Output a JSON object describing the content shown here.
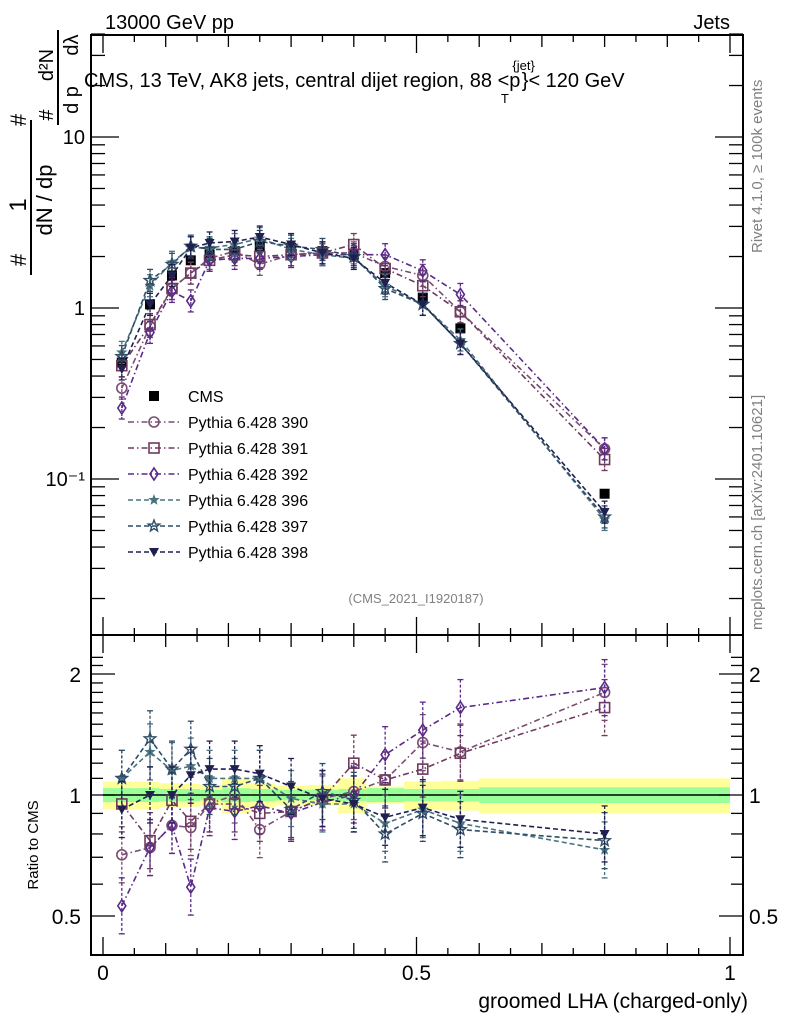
{
  "header": {
    "left": "13000 GeV pp",
    "right": "Jets"
  },
  "side_labels": {
    "rivet": "Rivet 4.1.0, ≥ 100k events",
    "mcplots": "mcplots.cern.ch [arXiv:2401.10621]"
  },
  "chart_data": [
    {
      "type": "line",
      "panel": "main",
      "title": "CMS, 13 TeV, AK8 jets, central dijet region, 88 <p_T^{jet}< 120 GeV",
      "title_parts": {
        "pre": "CMS, 13 TeV, AK8 jets, central dijet region, 88 <p",
        "sup": "{jet}",
        "sub": "T",
        "post": "}< 120 GeV"
      },
      "xlabel": "groomed LHA (charged-only)",
      "ylabel": "1/dN/dp_T  d²N/dp_T dλ",
      "ylabel_parts": {
        "num1": "1",
        "den1": "dN / dp",
        "den1sub": "T",
        "num2": "d²N",
        "den2": "d p",
        "den2sub": "T",
        "den2b": "dλ",
        "hash": "#"
      },
      "yscale": "log",
      "xlim": [
        -0.03,
        1.02
      ],
      "ylim": [
        0.018,
        40
      ],
      "yticks": [
        {
          "v": 10,
          "label": "10"
        },
        {
          "v": 1,
          "label": "1"
        },
        {
          "v": 0.1,
          "label": "10⁻¹"
        }
      ],
      "legend_position": "middle-left",
      "annotation": "(CMS_2021_I1920187)",
      "x": [
        0.03,
        0.075,
        0.11,
        0.14,
        0.17,
        0.21,
        0.25,
        0.3,
        0.35,
        0.4,
        0.45,
        0.51,
        0.57,
        0.8
      ],
      "series": [
        {
          "name": "CMS",
          "marker": "square-filled",
          "color": "#000000",
          "dash": "none",
          "values": [
            0.48,
            1.05,
            1.55,
            1.9,
            2.05,
            2.15,
            2.3,
            2.25,
            2.15,
            2.05,
            1.6,
            1.15,
            0.76,
            0.082
          ]
        },
        {
          "name": "Pythia 6.428 390",
          "marker": "circle-open",
          "color": "#7b4d73",
          "dash": "dashdot",
          "values": [
            0.34,
            0.78,
            1.3,
            1.6,
            1.95,
            2.15,
            1.8,
            2.05,
            2.1,
            2.1,
            1.75,
            1.55,
            0.95,
            0.15
          ]
        },
        {
          "name": "Pythia 6.428 391",
          "marker": "square-open",
          "color": "#6e3b5e",
          "dash": "dashdot",
          "values": [
            0.46,
            0.8,
            1.3,
            1.6,
            1.9,
            2.05,
            2.0,
            2.05,
            2.1,
            2.35,
            1.7,
            1.35,
            0.95,
            0.13
          ]
        },
        {
          "name": "Pythia 6.428 392",
          "marker": "diamond-open",
          "color": "#5a2a8a",
          "dash": "dashdot",
          "values": [
            0.26,
            0.72,
            1.25,
            1.1,
            1.9,
            1.95,
            1.95,
            2.0,
            2.05,
            2.05,
            2.05,
            1.65,
            1.2,
            0.15
          ]
        },
        {
          "name": "Pythia 6.428 396",
          "marker": "star-filled",
          "color": "#4a7380",
          "dash": "dashed",
          "values": [
            0.55,
            1.35,
            1.85,
            2.25,
            2.25,
            2.35,
            2.55,
            2.2,
            2.05,
            1.95,
            1.35,
            1.05,
            0.65,
            0.058
          ]
        },
        {
          "name": "Pythia 6.428 397",
          "marker": "star-open",
          "color": "#2f4d66",
          "dash": "dashed",
          "values": [
            0.52,
            1.45,
            1.8,
            2.3,
            2.2,
            2.2,
            2.45,
            2.3,
            2.2,
            2.0,
            1.3,
            1.05,
            0.62,
            0.06
          ]
        },
        {
          "name": "Pythia 6.428 398",
          "marker": "triangle-down-filled",
          "color": "#1f1f50",
          "dash": "dashed",
          "values": [
            0.44,
            1.05,
            1.55,
            2.25,
            2.4,
            2.45,
            2.6,
            2.35,
            2.1,
            1.95,
            1.4,
            1.05,
            0.62,
            0.064
          ]
        }
      ]
    },
    {
      "type": "line",
      "panel": "ratio",
      "xlabel": "groomed LHA (charged-only)",
      "ylabel": "Ratio to CMS",
      "yscale": "log",
      "xlim": [
        -0.03,
        1.02
      ],
      "ylim": [
        0.43,
        2.3
      ],
      "yticks": [
        {
          "v": 2,
          "label": "2"
        },
        {
          "v": 1,
          "label": "1"
        },
        {
          "v": 0.5,
          "label": "0.5"
        }
      ],
      "xticks": [
        {
          "v": 0,
          "label": "0"
        },
        {
          "v": 0.5,
          "label": "0.5"
        },
        {
          "v": 1,
          "label": "1"
        }
      ],
      "uncertainty_bands": {
        "edges": [
          0.0,
          0.05,
          0.09,
          0.125,
          0.155,
          0.19,
          0.235,
          0.275,
          0.325,
          0.375,
          0.42,
          0.48,
          0.54,
          0.6,
          1.0
        ],
        "inner_halfwidth": [
          0.04,
          0.04,
          0.035,
          0.035,
          0.03,
          0.04,
          0.035,
          0.03,
          0.03,
          0.035,
          0.04,
          0.035,
          0.035,
          0.045
        ],
        "outer_halfwidth": [
          0.08,
          0.08,
          0.07,
          0.065,
          0.06,
          0.1,
          0.07,
          0.055,
          0.06,
          0.1,
          0.05,
          0.08,
          0.085,
          0.1
        ],
        "inner_color": "#99ff99",
        "outer_color": "#ffff99"
      },
      "x": [
        0.03,
        0.075,
        0.11,
        0.14,
        0.17,
        0.21,
        0.25,
        0.3,
        0.35,
        0.4,
        0.45,
        0.51,
        0.57,
        0.8
      ],
      "series": [
        {
          "name": "Pythia 6.428 390",
          "values": [
            0.71,
            0.74,
            0.84,
            0.83,
            0.95,
            1.0,
            0.82,
            0.91,
            0.98,
            1.02,
            1.09,
            1.35,
            1.28,
            1.8
          ]
        },
        {
          "name": "Pythia 6.428 391",
          "values": [
            0.95,
            0.77,
            0.97,
            0.86,
            0.95,
            0.95,
            0.9,
            0.91,
            0.98,
            1.2,
            1.09,
            1.16,
            1.27,
            1.65
          ]
        },
        {
          "name": "Pythia 6.428 392",
          "values": [
            0.53,
            0.74,
            0.84,
            0.59,
            0.93,
            0.91,
            0.94,
            0.9,
            0.96,
            1.0,
            1.26,
            1.45,
            1.65,
            1.85
          ]
        },
        {
          "name": "Pythia 6.428 396",
          "values": [
            1.1,
            1.28,
            1.15,
            1.18,
            1.1,
            1.1,
            1.1,
            0.98,
            0.95,
            0.95,
            0.85,
            0.92,
            0.85,
            0.73
          ]
        },
        {
          "name": "Pythia 6.428 397",
          "values": [
            1.1,
            1.38,
            1.16,
            1.3,
            1.05,
            1.05,
            1.1,
            0.92,
            1.02,
            0.97,
            0.8,
            0.9,
            0.82,
            0.77
          ]
        },
        {
          "name": "Pythia 6.428 398",
          "values": [
            0.92,
            1.0,
            1.0,
            1.12,
            1.16,
            1.16,
            1.13,
            1.05,
            0.98,
            0.95,
            0.88,
            0.93,
            0.87,
            0.8
          ]
        }
      ]
    }
  ]
}
